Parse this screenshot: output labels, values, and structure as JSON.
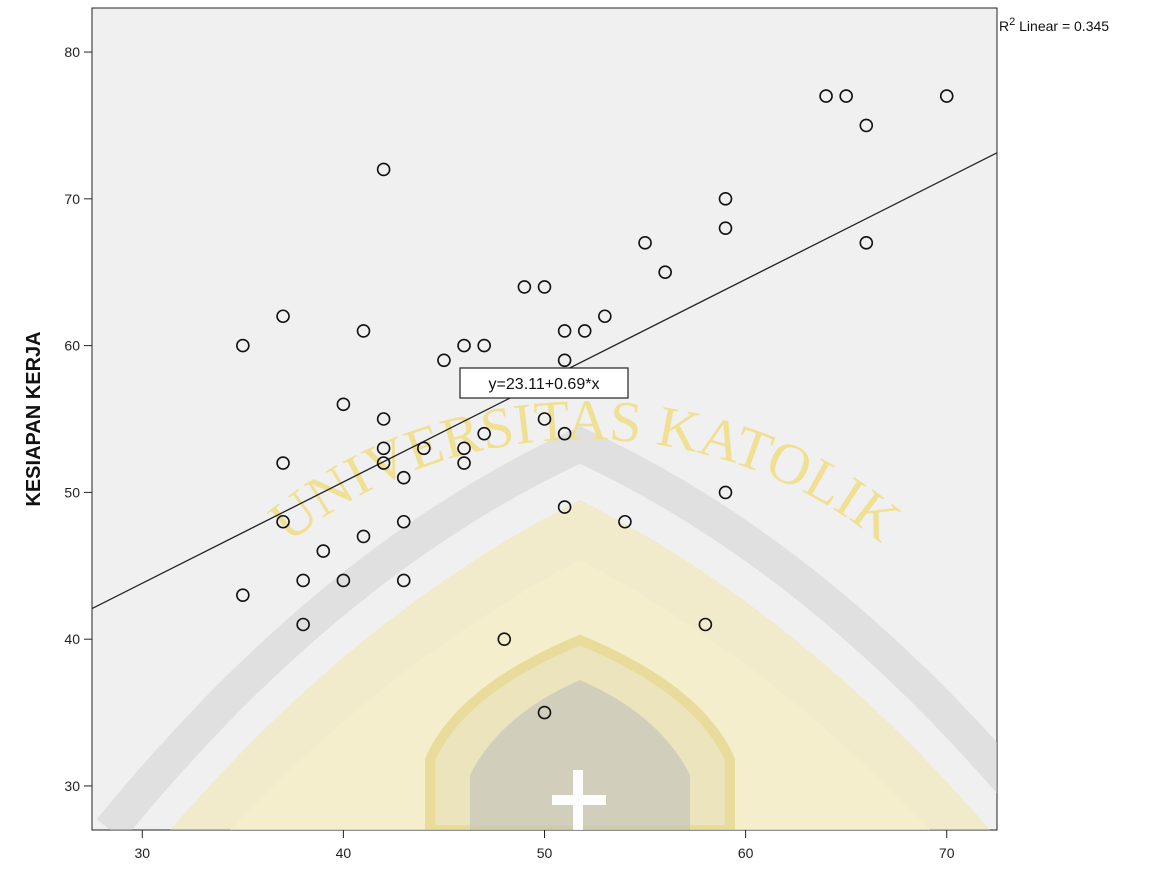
{
  "chart_data": {
    "type": "scatter",
    "title": "",
    "xlabel": "",
    "ylabel": "KESIAPAN KERJA",
    "xlim": [
      27.5,
      72.5
    ],
    "ylim": [
      27,
      83
    ],
    "x_ticks": [
      30,
      40,
      50,
      60,
      70
    ],
    "y_ticks": [
      30,
      40,
      50,
      60,
      70,
      80
    ],
    "grid": false,
    "r2_label": "R² Linear = 0.345",
    "fit_line": {
      "intercept": 23.11,
      "slope": 0.69,
      "label": "y=23.11+0.69*x"
    },
    "points": [
      {
        "x": 35,
        "y": 60
      },
      {
        "x": 35,
        "y": 43
      },
      {
        "x": 37,
        "y": 62
      },
      {
        "x": 37,
        "y": 52
      },
      {
        "x": 37,
        "y": 48
      },
      {
        "x": 38,
        "y": 44
      },
      {
        "x": 38,
        "y": 41
      },
      {
        "x": 39,
        "y": 46
      },
      {
        "x": 40,
        "y": 56
      },
      {
        "x": 40,
        "y": 44
      },
      {
        "x": 41,
        "y": 61
      },
      {
        "x": 41,
        "y": 47
      },
      {
        "x": 42,
        "y": 72
      },
      {
        "x": 42,
        "y": 55
      },
      {
        "x": 42,
        "y": 53
      },
      {
        "x": 42,
        "y": 52
      },
      {
        "x": 43,
        "y": 51
      },
      {
        "x": 43,
        "y": 48
      },
      {
        "x": 43,
        "y": 44
      },
      {
        "x": 44,
        "y": 53
      },
      {
        "x": 45,
        "y": 59
      },
      {
        "x": 46,
        "y": 60
      },
      {
        "x": 46,
        "y": 53
      },
      {
        "x": 46,
        "y": 52
      },
      {
        "x": 47,
        "y": 60
      },
      {
        "x": 47,
        "y": 54
      },
      {
        "x": 48,
        "y": 40
      },
      {
        "x": 49,
        "y": 64
      },
      {
        "x": 50,
        "y": 64
      },
      {
        "x": 50,
        "y": 55
      },
      {
        "x": 50,
        "y": 35
      },
      {
        "x": 51,
        "y": 61
      },
      {
        "x": 51,
        "y": 59
      },
      {
        "x": 51,
        "y": 54
      },
      {
        "x": 51,
        "y": 49
      },
      {
        "x": 52,
        "y": 61
      },
      {
        "x": 53,
        "y": 62
      },
      {
        "x": 54,
        "y": 48
      },
      {
        "x": 55,
        "y": 67
      },
      {
        "x": 56,
        "y": 65
      },
      {
        "x": 58,
        "y": 41
      },
      {
        "x": 59,
        "y": 70
      },
      {
        "x": 59,
        "y": 68
      },
      {
        "x": 59,
        "y": 50
      },
      {
        "x": 64,
        "y": 77
      },
      {
        "x": 65,
        "y": 77
      },
      {
        "x": 66,
        "y": 75
      },
      {
        "x": 66,
        "y": 67
      },
      {
        "x": 70,
        "y": 77
      }
    ]
  },
  "watermark": {
    "text": "UNIVERSITAS KATOLIK",
    "color": "#f0dc78"
  },
  "colors": {
    "plot_background": "#f0f0f0",
    "marker_stroke": "#111111",
    "line": "#222222"
  }
}
